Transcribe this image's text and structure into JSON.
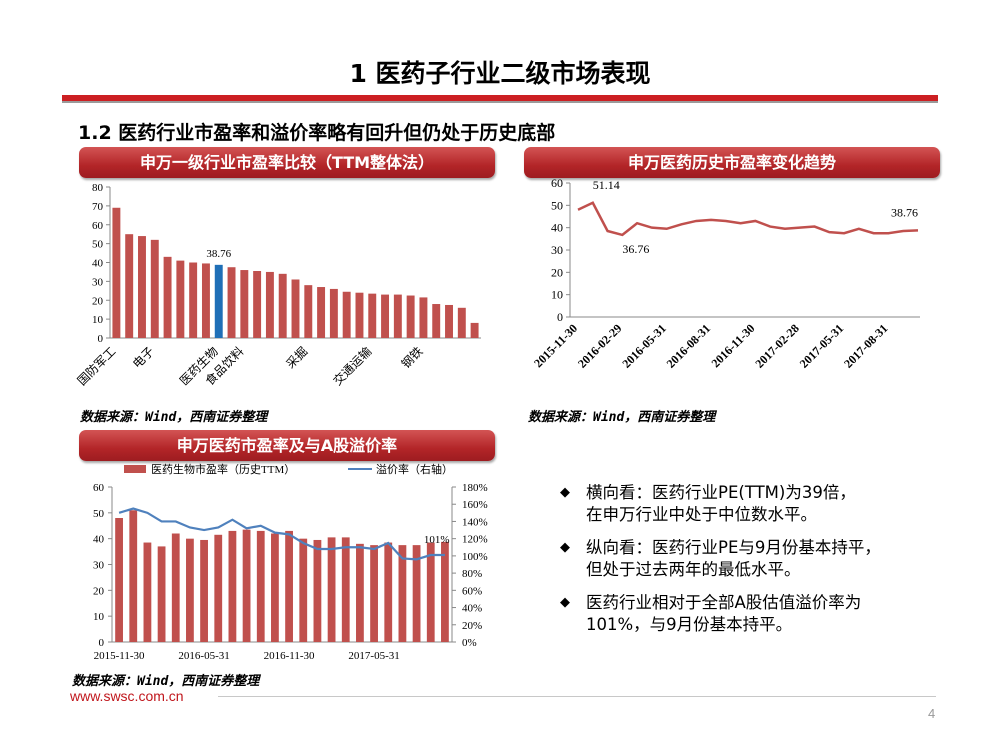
{
  "page": {
    "title": "1 医药子行业二级市场表现",
    "subtitle": "1.2 医药行业市盈率和溢价率略有回升但仍处于历史底部",
    "source_note": "数据来源：Wind，西南证券整理",
    "footer_url": "www.swsc.com.cn",
    "page_number": "4"
  },
  "panels": {
    "industry_pe": {
      "banner": "申万一级行业市盈率比较（TTM整体法）"
    },
    "pe_trend": {
      "banner": "申万医药历史市盈率变化趋势"
    },
    "premium": {
      "banner": "申万医药市盈率及与A股溢价率"
    }
  },
  "bullets": [
    {
      "line1": "横向看：医药行业PE(TTM)为39倍，",
      "line2": "在申万行业中处于中位数水平。"
    },
    {
      "line1": "纵向看：医药行业PE与9月份基本持平，",
      "line2": "但处于过去两年的最低水平。"
    },
    {
      "line1": "医药行业相对于全部A股估值溢价率为",
      "line2": "101%，与9月份基本持平。"
    }
  ],
  "colors": {
    "accent_red": "#cc1f22",
    "bar_red": "#c0504d",
    "highlight_blue": "#1f6fb7",
    "line_blue": "#4f81bd"
  },
  "chart_data": [
    {
      "type": "bar",
      "title": "申万一级行业市盈率比较（TTM整体法）",
      "ylim": [
        0,
        80
      ],
      "yticks": [
        0,
        10,
        20,
        30,
        40,
        50,
        60,
        70,
        80
      ],
      "values": [
        69,
        55,
        54,
        52,
        43,
        41,
        40,
        39.5,
        38.76,
        37.5,
        36,
        35.5,
        35,
        34,
        31,
        28,
        27,
        26,
        24.5,
        24,
        23.5,
        23,
        23,
        22.5,
        21.5,
        18,
        17.5,
        16,
        8
      ],
      "highlight_index": 8,
      "data_label": {
        "index": 8,
        "text": "38.76"
      },
      "category_labels": [
        {
          "index": 0,
          "text": "国防军工"
        },
        {
          "index": 3,
          "text": "电子"
        },
        {
          "index": 8,
          "text": "医药生物"
        },
        {
          "index": 10,
          "text": "食品饮料"
        },
        {
          "index": 15,
          "text": "采掘"
        },
        {
          "index": 20,
          "text": "交通运输"
        },
        {
          "index": 24,
          "text": "钢铁"
        }
      ]
    },
    {
      "type": "line",
      "title": "申万医药历史市盈率变化趋势",
      "ylim": [
        0,
        60
      ],
      "yticks": [
        0,
        10,
        20,
        30,
        40,
        50,
        60
      ],
      "values": [
        48,
        51.14,
        38.5,
        36.76,
        42,
        40,
        39.5,
        41.5,
        43,
        43.5,
        43,
        42,
        43,
        40.5,
        39.5,
        40,
        40.5,
        38,
        37.5,
        39.5,
        37.5,
        37.5,
        38.5,
        38.76
      ],
      "xtick_labels": [
        {
          "index": 0,
          "text": "2015-11-30"
        },
        {
          "index": 3,
          "text": "2016-02-29"
        },
        {
          "index": 6,
          "text": "2016-05-31"
        },
        {
          "index": 9,
          "text": "2016-08-31"
        },
        {
          "index": 12,
          "text": "2016-11-30"
        },
        {
          "index": 15,
          "text": "2017-02-28"
        },
        {
          "index": 18,
          "text": "2017-05-31"
        },
        {
          "index": 21,
          "text": "2017-08-31"
        }
      ],
      "annotations": [
        {
          "index": 1,
          "text": "51.14"
        },
        {
          "index": 3,
          "text": "36.76"
        },
        {
          "index": 23,
          "text": "38.76"
        }
      ]
    },
    {
      "type": "bar",
      "title": "申万医药市盈率及与A股溢价率",
      "series": [
        {
          "name": "医药生物市盈率（历史TTM）",
          "type": "bar",
          "axis": "left",
          "values": [
            48,
            51,
            38.5,
            37,
            42,
            40,
            39.5,
            41.5,
            43,
            43.5,
            43,
            42,
            43,
            40,
            39.5,
            40.5,
            40.5,
            38,
            37.5,
            38.5,
            37.5,
            37.5,
            38.5,
            38.76
          ]
        },
        {
          "name": "溢价率（右轴）",
          "type": "line",
          "axis": "right",
          "values": [
            150,
            155,
            150,
            140,
            140,
            133,
            130,
            133,
            142,
            132,
            135,
            127,
            125,
            115,
            108,
            108,
            110,
            110,
            108,
            115,
            97,
            96,
            101,
            101
          ]
        }
      ],
      "ylim_left": [
        0,
        60
      ],
      "yticks_left": [
        0,
        10,
        20,
        30,
        40,
        50,
        60
      ],
      "ylim_right": [
        0,
        180
      ],
      "yticks_right": [
        "0%",
        "20%",
        "40%",
        "60%",
        "80%",
        "100%",
        "120%",
        "140%",
        "160%",
        "180%"
      ],
      "xtick_labels": [
        {
          "index": 0,
          "text": "2015-11-30"
        },
        {
          "index": 6,
          "text": "2016-05-31"
        },
        {
          "index": 12,
          "text": "2016-11-30"
        },
        {
          "index": 18,
          "text": "2017-05-31"
        }
      ],
      "annotation": {
        "index": 22,
        "text": "101%"
      }
    }
  ]
}
